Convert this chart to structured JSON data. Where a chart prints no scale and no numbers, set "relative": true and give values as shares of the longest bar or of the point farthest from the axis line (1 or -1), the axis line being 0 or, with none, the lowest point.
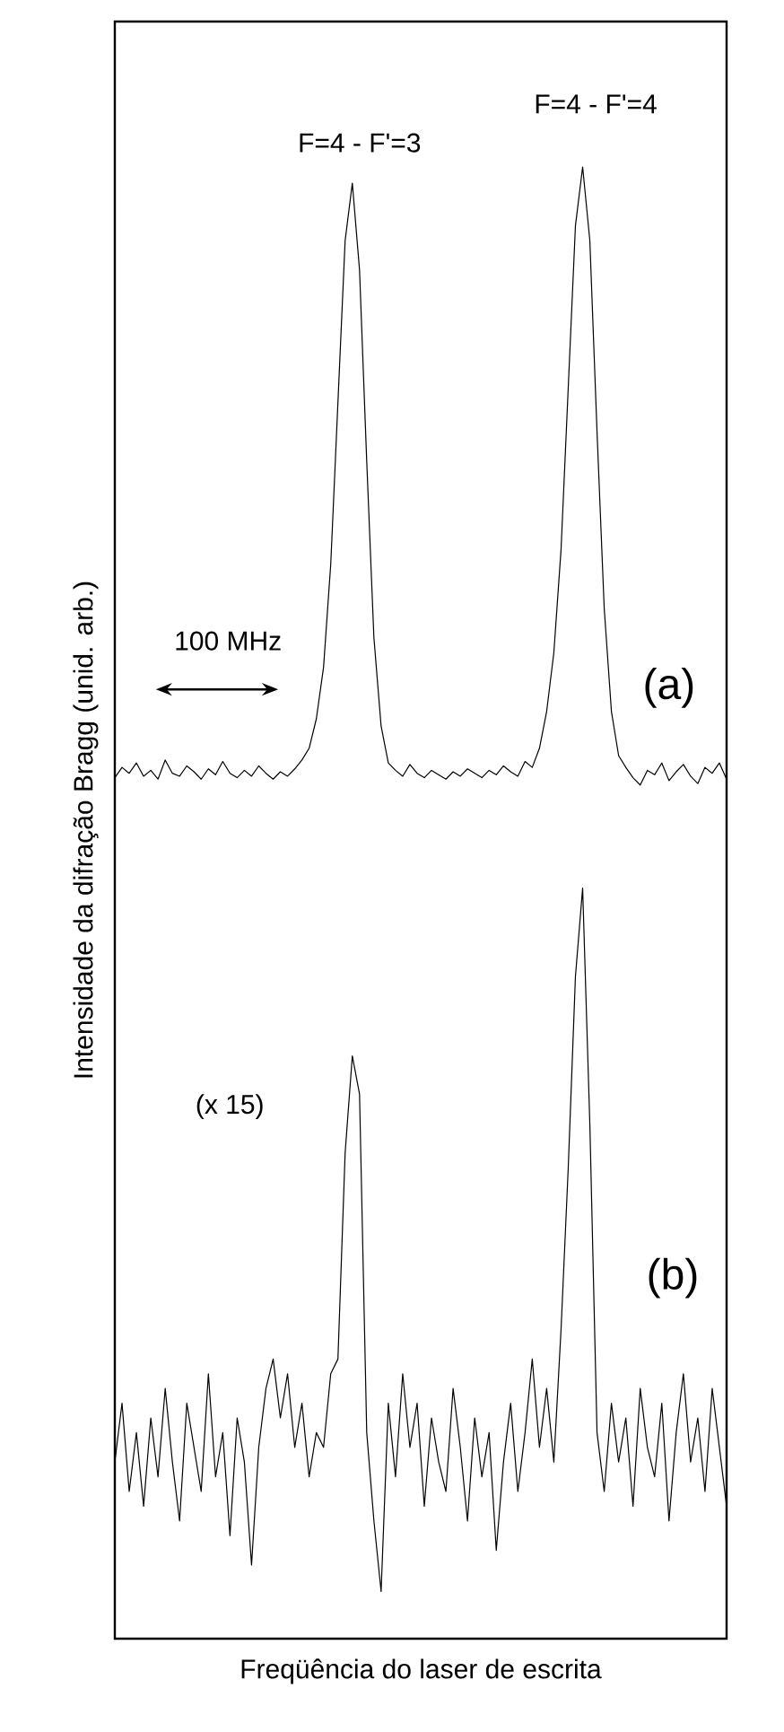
{
  "chart_data": {
    "type": "line",
    "relative": true,
    "xlabel": "Freqüência do laser de escrita",
    "ylabel": "Intensidade da difração Bragg (unid. arb.)",
    "annotations": [
      "F=4 - F'=3",
      "F=4 - F'=4",
      "100 MHz",
      "(a)",
      "(x 15)",
      "(b)"
    ],
    "categories": [
      null,
      null,
      null,
      null,
      null,
      null,
      null,
      null,
      null,
      null,
      null,
      null,
      null,
      null,
      null,
      null,
      null,
      null,
      null,
      null,
      null,
      null,
      null,
      null,
      null,
      null,
      null,
      null,
      null,
      null,
      null,
      null,
      null,
      null,
      null,
      null,
      null,
      null,
      null,
      null,
      null,
      null,
      null,
      null,
      null,
      null,
      null,
      null,
      null,
      null,
      null,
      null,
      null,
      null,
      null,
      null,
      null,
      null,
      null,
      null,
      null,
      null,
      null,
      null,
      null,
      null,
      null,
      null,
      null,
      null,
      null,
      null,
      null,
      null,
      null,
      null,
      null,
      null,
      null,
      null,
      null,
      null,
      null,
      null,
      null,
      null
    ],
    "series": [
      {
        "color": "#000000",
        "values": [
          0.585,
          0.592,
          0.588,
          0.595,
          0.586,
          0.59,
          0.584,
          0.597,
          0.588,
          0.586,
          0.593,
          0.589,
          0.584,
          0.591,
          0.587,
          0.596,
          0.588,
          0.585,
          0.59,
          0.586,
          0.593,
          0.588,
          0.584,
          0.589,
          0.586,
          0.591,
          0.597,
          0.605,
          0.625,
          0.66,
          0.73,
          0.84,
          0.95,
          0.989,
          0.93,
          0.8,
          0.68,
          0.62,
          0.595,
          0.59,
          0.586,
          0.594,
          0.588,
          0.585,
          0.59,
          0.587,
          0.584,
          0.589,
          0.586,
          0.591,
          0.588,
          0.585,
          0.59,
          0.587,
          0.593,
          0.589,
          0.586,
          0.596,
          0.592,
          0.605,
          0.63,
          0.67,
          0.74,
          0.85,
          0.96,
          1.0,
          0.95,
          0.82,
          0.7,
          0.63,
          0.6,
          0.592,
          0.585,
          0.58,
          0.59,
          0.587,
          0.595,
          0.583,
          0.589,
          0.594,
          0.586,
          0.581,
          0.592,
          0.588,
          0.595,
          0.584
        ]
      },
      {
        "color": "#000000",
        "values": [
          0.12,
          0.16,
          0.1,
          0.14,
          0.09,
          0.15,
          0.11,
          0.17,
          0.12,
          0.08,
          0.16,
          0.13,
          0.1,
          0.18,
          0.11,
          0.14,
          0.07,
          0.15,
          0.12,
          0.05,
          0.13,
          0.17,
          0.19,
          0.15,
          0.18,
          0.13,
          0.16,
          0.11,
          0.14,
          0.13,
          0.18,
          0.19,
          0.33,
          0.396,
          0.37,
          0.14,
          0.08,
          0.032,
          0.16,
          0.11,
          0.18,
          0.13,
          0.16,
          0.09,
          0.15,
          0.12,
          0.1,
          0.17,
          0.13,
          0.08,
          0.15,
          0.11,
          0.14,
          0.06,
          0.12,
          0.16,
          0.1,
          0.14,
          0.19,
          0.13,
          0.17,
          0.12,
          0.21,
          0.32,
          0.45,
          0.51,
          0.35,
          0.14,
          0.1,
          0.16,
          0.12,
          0.15,
          0.09,
          0.17,
          0.13,
          0.11,
          0.16,
          0.08,
          0.14,
          0.18,
          0.12,
          0.15,
          0.1,
          0.17,
          0.13,
          0.09
        ]
      }
    ]
  }
}
